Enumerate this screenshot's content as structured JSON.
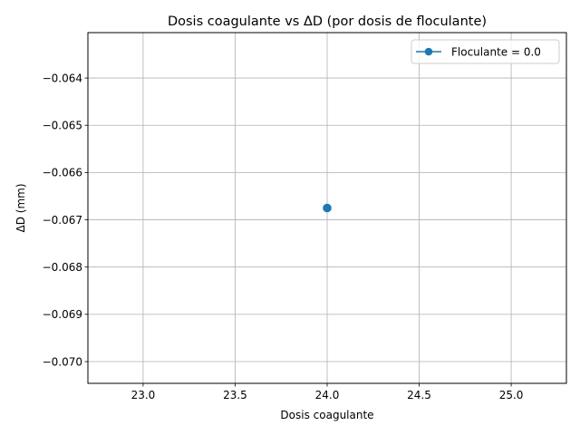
{
  "chart_data": {
    "type": "line",
    "title": "Dosis coagulante vs ΔD (por dosis de floculante)",
    "xlabel": "Dosis coagulante",
    "ylabel": "ΔD (mm)",
    "xlim": [
      22.7,
      25.3
    ],
    "ylim": [
      -0.07046,
      -0.06304
    ],
    "xticks": [
      23.0,
      23.5,
      24.0,
      24.5,
      25.0
    ],
    "xtick_labels": [
      "23.0",
      "23.5",
      "24.0",
      "24.5",
      "25.0"
    ],
    "yticks": [
      -0.07,
      -0.069,
      -0.068,
      -0.067,
      -0.066,
      -0.065,
      -0.064
    ],
    "ytick_labels": [
      "−0.070",
      "−0.069",
      "−0.068",
      "−0.067",
      "−0.066",
      "−0.065",
      "−0.064"
    ],
    "grid": true,
    "legend_position": "upper-right",
    "series": [
      {
        "name": "Floculante = 0.0",
        "color": "#1f77b4",
        "marker": "circle",
        "x": [
          24.0
        ],
        "y": [
          -0.06675
        ]
      }
    ]
  }
}
